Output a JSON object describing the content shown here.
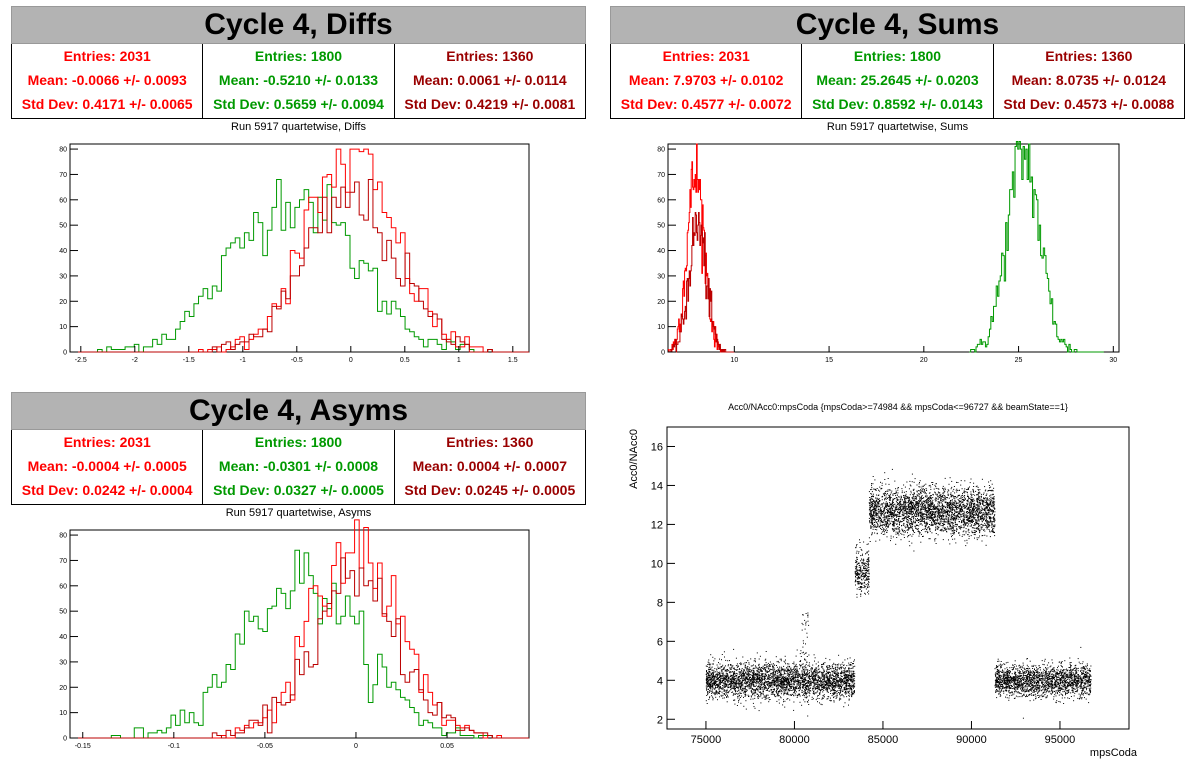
{
  "panels": [
    {
      "header": "Cycle 4, Diffs",
      "stats": [
        {
          "entries": "Entries: 2031",
          "mean": "Mean: -0.0066 +/- 0.0093",
          "std": "Std Dev: 0.4171 +/- 0.0065",
          "color": "#ff0000"
        },
        {
          "entries": "Entries: 1800",
          "mean": "Mean: -0.5210 +/- 0.0133",
          "std": "Std Dev: 0.5659 +/- 0.0094",
          "color": "#009900"
        },
        {
          "entries": "Entries: 1360",
          "mean": "Mean: 0.0061 +/- 0.0114",
          "std": "Std Dev: 0.4219 +/- 0.0081",
          "color": "#990000"
        }
      ],
      "subtitle": "Run 5917 quartetwise, Diffs"
    },
    {
      "header": "Cycle 4, Sums",
      "stats": [
        {
          "entries": "Entries: 2031",
          "mean": "Mean: 7.9703 +/- 0.0102",
          "std": "Std Dev: 0.4577 +/- 0.0072",
          "color": "#ff0000"
        },
        {
          "entries": "Entries: 1800",
          "mean": "Mean: 25.2645 +/- 0.0203",
          "std": "Std Dev: 0.8592 +/- 0.0143",
          "color": "#009900"
        },
        {
          "entries": "Entries: 1360",
          "mean": "Mean: 8.0735 +/- 0.0124",
          "std": "Std Dev: 0.4573 +/- 0.0088",
          "color": "#990000"
        }
      ],
      "subtitle": "Run 5917 quartetwise, Sums"
    },
    {
      "header": "Cycle 4, Asyms",
      "stats": [
        {
          "entries": "Entries: 2031",
          "mean": "Mean: -0.0004 +/- 0.0005",
          "std": "Std Dev: 0.0242 +/- 0.0004",
          "color": "#ff0000"
        },
        {
          "entries": "Entries: 1800",
          "mean": "Mean: -0.0301 +/- 0.0008",
          "std": "Std Dev: 0.0327 +/- 0.0005",
          "color": "#009900"
        },
        {
          "entries": "Entries: 1360",
          "mean": "Mean: 0.0004 +/- 0.0007",
          "std": "Std Dev: 0.0245 +/- 0.0005",
          "color": "#990000"
        }
      ],
      "subtitle": "Run 5917 quartetwise, Asyms"
    }
  ],
  "chart_data": [
    {
      "type": "histogram",
      "name": "diffs",
      "xlim": [
        -2.6,
        1.65
      ],
      "ylim": [
        0,
        82
      ],
      "xticks": [
        -2.5,
        -2,
        -1.5,
        -1,
        -0.5,
        0,
        0.5,
        1,
        1.5
      ],
      "xtick_labels": [
        "-2.5",
        "-2",
        "-1.5",
        "-1",
        "-0.5",
        "0",
        "0.5",
        "1",
        "1.5"
      ],
      "yticks": [
        0,
        10,
        20,
        30,
        40,
        50,
        60,
        70,
        80
      ],
      "ytick_labels": [
        "0",
        "10",
        "20",
        "30",
        "40",
        "50",
        "60",
        "70",
        "80"
      ],
      "series": [
        {
          "entries": 1800,
          "mean": -0.521,
          "sigma": 0.566,
          "peak": 62,
          "color": "#009900",
          "xmin": -2.6,
          "xmax": 1.65
        },
        {
          "entries": 2031,
          "mean": -0.0066,
          "sigma": 0.417,
          "peak": 75,
          "color": "#ff0000",
          "xmin": -2.6,
          "xmax": 1.65
        },
        {
          "entries": 1360,
          "mean": 0.0061,
          "sigma": 0.422,
          "peak": 60,
          "color": "#bb0000",
          "xmin": -2.6,
          "xmax": 1.65
        }
      ]
    },
    {
      "type": "histogram",
      "name": "sums",
      "xlim": [
        6.5,
        30.3
      ],
      "ylim": [
        0,
        82
      ],
      "xticks": [
        10,
        15,
        20,
        25,
        30
      ],
      "xtick_labels": [
        "10",
        "15",
        "20",
        "25",
        "30"
      ],
      "yticks": [
        0,
        10,
        20,
        30,
        40,
        50,
        60,
        70,
        80
      ],
      "ytick_labels": [
        "0",
        "10",
        "20",
        "30",
        "40",
        "50",
        "60",
        "70",
        "80"
      ],
      "series": [
        {
          "entries": 1800,
          "mean": 25.26,
          "sigma": 0.86,
          "peak": 78,
          "color": "#009900",
          "xmin": 22.4,
          "xmax": 29.5
        },
        {
          "entries": 2031,
          "mean": 7.97,
          "sigma": 0.46,
          "peak": 70,
          "color": "#ff0000",
          "xmin": 6.5,
          "xmax": 10.0
        },
        {
          "entries": 1360,
          "mean": 8.07,
          "sigma": 0.46,
          "peak": 50,
          "color": "#bb0000",
          "xmin": 6.5,
          "xmax": 10.0
        }
      ]
    },
    {
      "type": "histogram",
      "name": "asyms",
      "xlim": [
        -0.157,
        0.095
      ],
      "ylim": [
        0,
        82
      ],
      "xticks": [
        -0.15,
        -0.1,
        -0.05,
        0,
        0.05
      ],
      "xtick_labels": [
        "-0.15",
        "-0.1",
        "-0.05",
        "0",
        "0.05"
      ],
      "yticks": [
        0,
        10,
        20,
        30,
        40,
        50,
        60,
        70,
        80
      ],
      "ytick_labels": [
        "0",
        "10",
        "20",
        "30",
        "40",
        "50",
        "60",
        "70",
        "80"
      ],
      "series": [
        {
          "entries": 1800,
          "mean": -0.0301,
          "sigma": 0.0327,
          "peak": 62,
          "color": "#009900",
          "xmin": -0.157,
          "xmax": 0.095
        },
        {
          "entries": 2031,
          "mean": -0.0004,
          "sigma": 0.0242,
          "peak": 75,
          "color": "#ff0000",
          "xmin": -0.157,
          "xmax": 0.095
        },
        {
          "entries": 1360,
          "mean": 0.0004,
          "sigma": 0.0245,
          "peak": 60,
          "color": "#bb0000",
          "xmin": -0.157,
          "xmax": 0.095
        }
      ]
    },
    {
      "type": "scatter",
      "name": "acc0",
      "title": "Acc0/NAcc0:mpsCoda {mpsCoda>=74984 && mpsCoda<=96727 && beamState==1}",
      "xlabel": "mpsCoda",
      "ylabel": "Acc0/NAcc0",
      "xlim": [
        72800,
        98900
      ],
      "ylim": [
        1.5,
        17
      ],
      "xticks": [
        75000,
        80000,
        85000,
        90000,
        95000
      ],
      "xtick_labels": [
        "75000",
        "80000",
        "85000",
        "90000",
        "95000"
      ],
      "yticks": [
        2,
        4,
        6,
        8,
        10,
        12,
        14,
        16
      ],
      "ytick_labels": [
        "2",
        "4",
        "6",
        "8",
        "10",
        "12",
        "14",
        "16"
      ],
      "segments": [
        {
          "x0": 74984,
          "x1": 83400,
          "mean": 4.0,
          "spread": 0.45,
          "n": 3400
        },
        {
          "x0": 83400,
          "x1": 84200,
          "mean": 9.6,
          "spread": 0.55,
          "n": 280
        },
        {
          "x0": 84200,
          "x1": 91300,
          "mean": 12.7,
          "spread": 0.6,
          "n": 3200
        },
        {
          "x0": 91300,
          "x1": 96727,
          "mean": 4.0,
          "spread": 0.4,
          "n": 2000
        }
      ],
      "color": "#000000"
    }
  ]
}
